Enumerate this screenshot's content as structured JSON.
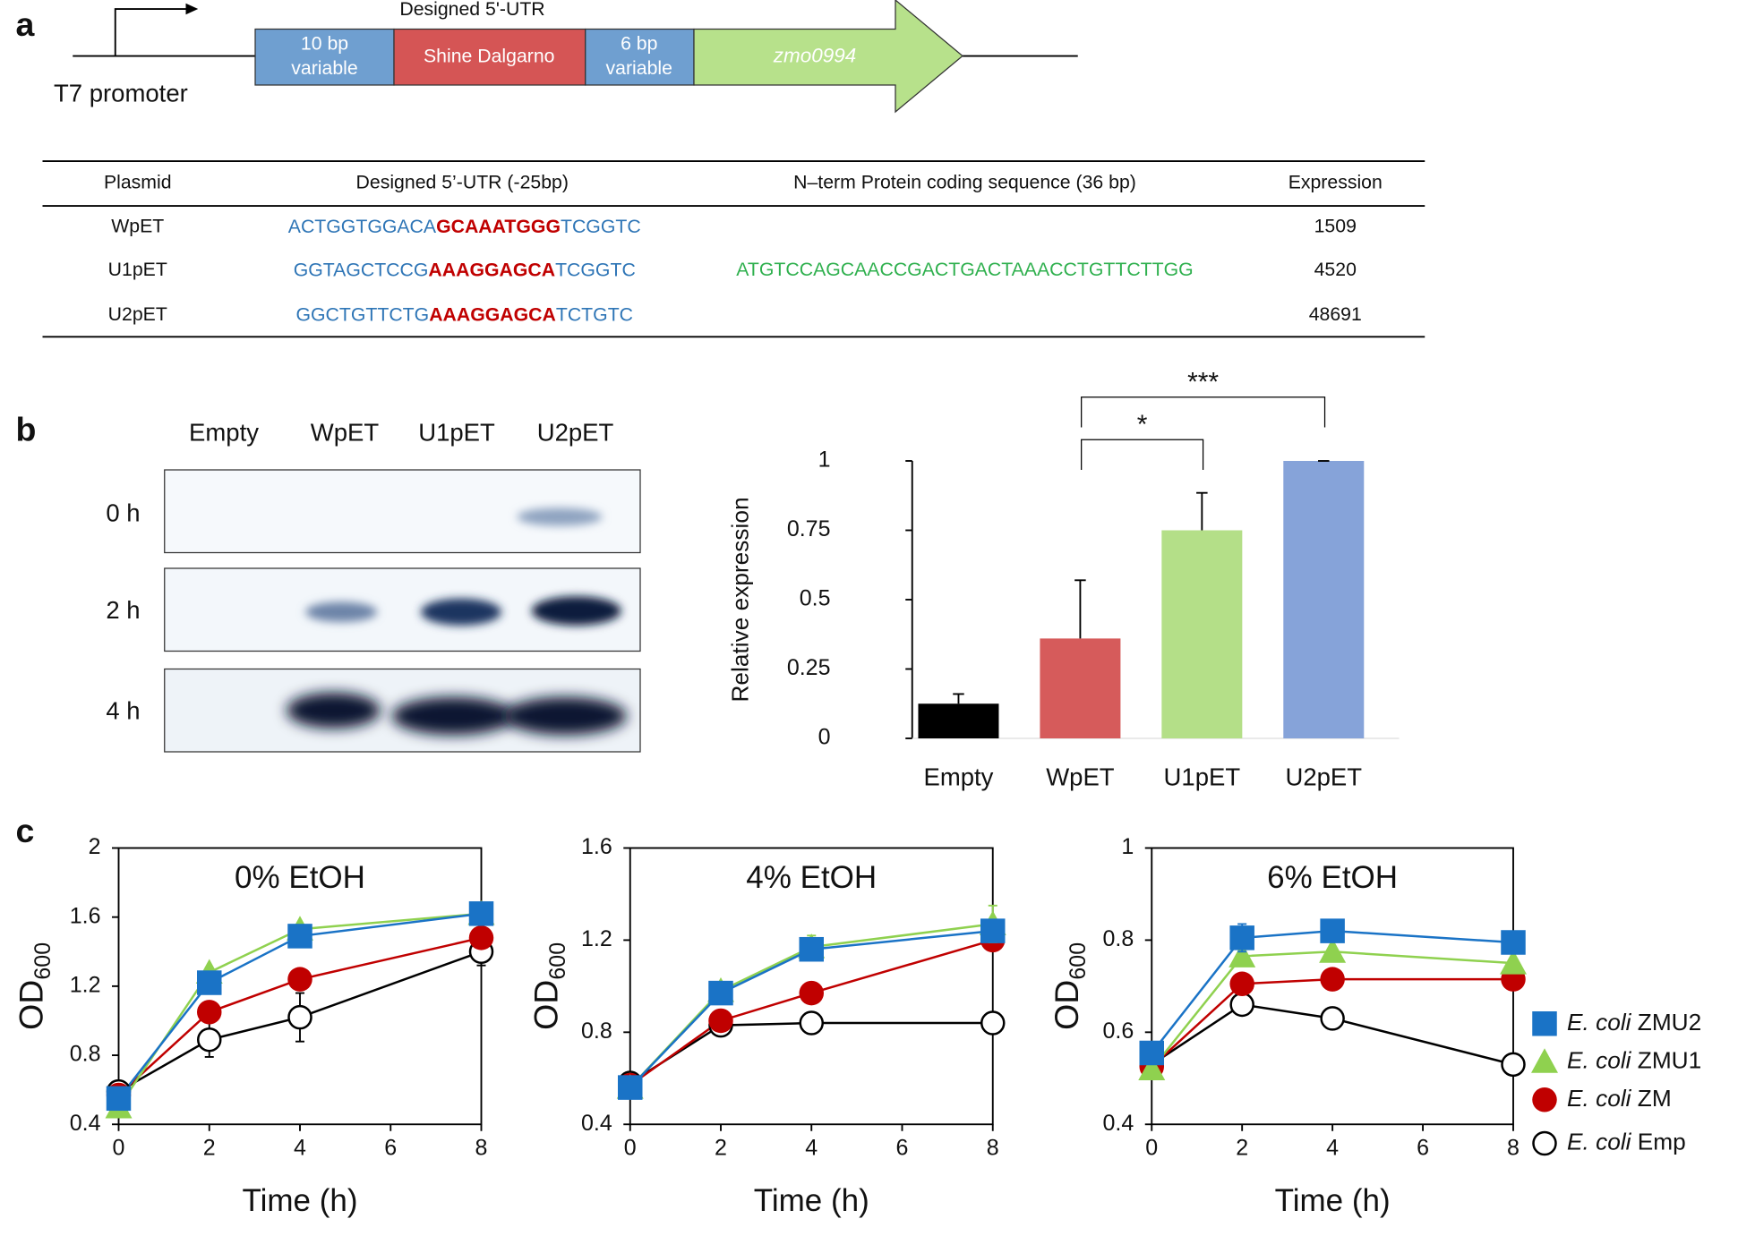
{
  "panel_labels": [
    "a",
    "b",
    "c"
  ],
  "diagram": {
    "promoter": "T7 promoter",
    "utr_label": "Designed 5'-UTR",
    "boxes": [
      [
        "10 bp",
        "variable"
      ],
      [
        "Shine Dalgarno"
      ],
      [
        "6 bp",
        "variable"
      ]
    ],
    "gene": "zmo0994"
  },
  "table": {
    "headers": [
      "Plasmid",
      "Designed 5’-UTR (-25bp)",
      "N–term Protein coding sequence (36 bp)",
      "Expression"
    ],
    "rows": [
      {
        "plasmid": "WpET",
        "utr": [
          "ACTGGTGGACA",
          "GCAAATGGG",
          "TCGGTC"
        ],
        "expression": 1509
      },
      {
        "plasmid": "U1pET",
        "utr": [
          "GGTAGCTCCG",
          "AAAGGAGCA",
          "TCGGTC"
        ],
        "coding": "ATGTCCAGCAACCGACTGACTAAACCTGTTCTTGG",
        "expression": 4520
      },
      {
        "plasmid": "U2pET",
        "utr": [
          "GGCTGTTCTG",
          "AAAGGAGCA",
          "TCTGTC"
        ],
        "expression": 48691
      }
    ]
  },
  "blot": {
    "lanes": [
      "Empty",
      "WpET",
      "U1pET",
      "U2pET"
    ],
    "rows": [
      "0 h",
      "2 h",
      "4 h"
    ]
  },
  "chart_data": [
    {
      "type": "bar",
      "y_label": "Relative expression",
      "categories": [
        "Empty",
        "WpET",
        "U1pET",
        "U2pET"
      ],
      "values": [
        0.125,
        0.36,
        0.75,
        1
      ],
      "errors": [
        0.035,
        0.21,
        0.135,
        0
      ],
      "colors": [
        "#000000",
        "#d65b5b",
        "#b4df88",
        "#86a3d9"
      ],
      "ylim": [
        0,
        1
      ],
      "yticks": [
        0,
        0.25,
        0.5,
        0.75,
        1
      ],
      "annotations": [
        {
          "text": "*",
          "from": "WpET",
          "to": "U1pET"
        },
        {
          "text": "***",
          "from": "WpET",
          "to": "U2pET"
        }
      ]
    },
    {
      "type": "line",
      "title": "0% EtOH",
      "x_label": "Time (h)",
      "y_label": {
        "text": "OD",
        "subscript": "600"
      },
      "xlim": [
        0,
        8
      ],
      "xticks": [
        0,
        2,
        4,
        6,
        8
      ],
      "ylim": [
        0.4,
        2
      ],
      "yticks": [
        0.4,
        0.8,
        1.2,
        1.6,
        2
      ],
      "x": [
        0,
        2,
        4,
        8
      ],
      "series": [
        {
          "name": "E. coli ZMU2",
          "color": "#1a73c6",
          "marker": "square",
          "values": [
            0.55,
            1.22,
            1.49,
            1.62
          ]
        },
        {
          "name": "E. coli ZMU1",
          "color": "#8fd14f",
          "marker": "triangle",
          "values": [
            0.5,
            1.28,
            1.53,
            1.62
          ]
        },
        {
          "name": "E. coli ZM",
          "color": "#c00000",
          "marker": "circle",
          "values": [
            0.57,
            1.05,
            1.24,
            1.48
          ]
        },
        {
          "name": "E. coli Emp",
          "color": "#000000",
          "marker": "open-circle",
          "values": [
            0.59,
            0.89,
            1.02,
            1.4
          ],
          "errors": [
            0,
            0.1,
            0.14,
            0.08
          ]
        }
      ]
    },
    {
      "type": "line",
      "title": "4% EtOH",
      "x_label": "Time (h)",
      "y_label": {
        "text": "OD",
        "subscript": "600"
      },
      "xlim": [
        0,
        8
      ],
      "xticks": [
        0,
        2,
        4,
        6,
        8
      ],
      "ylim": [
        0.4,
        1.6
      ],
      "yticks": [
        0.4,
        0.8,
        1.2,
        1.6
      ],
      "x": [
        0,
        2,
        4,
        8
      ],
      "series": [
        {
          "name": "E. coli ZMU2",
          "color": "#1a73c6",
          "marker": "square",
          "values": [
            0.56,
            0.97,
            1.16,
            1.24
          ]
        },
        {
          "name": "E. coli ZMU1",
          "color": "#8fd14f",
          "marker": "triangle",
          "values": [
            0.56,
            0.98,
            1.17,
            1.27
          ],
          "errors": [
            0,
            0,
            0.05,
            0.08
          ]
        },
        {
          "name": "E. coli ZM",
          "color": "#c00000",
          "marker": "circle",
          "values": [
            0.57,
            0.85,
            0.97,
            1.2
          ]
        },
        {
          "name": "E. coli Emp",
          "color": "#000000",
          "marker": "open-circle",
          "values": [
            0.58,
            0.83,
            0.84,
            0.84
          ],
          "errors": [
            0,
            0,
            0.02,
            0.02
          ]
        }
      ]
    },
    {
      "type": "line",
      "title": "6% EtOH",
      "x_label": "Time (h)",
      "y_label": {
        "text": "OD",
        "subscript": "600"
      },
      "xlim": [
        0,
        8
      ],
      "xticks": [
        0,
        2,
        4,
        6,
        8
      ],
      "ylim": [
        0.4,
        1
      ],
      "yticks": [
        0.4,
        0.6,
        0.8,
        1
      ],
      "x": [
        0,
        2,
        4,
        8
      ],
      "legend": "right",
      "series": [
        {
          "name": "E. coli ZMU2",
          "color": "#1a73c6",
          "marker": "square",
          "values": [
            0.555,
            0.805,
            0.82,
            0.795
          ],
          "errors": [
            0,
            0.03,
            0.015,
            0
          ]
        },
        {
          "name": "E. coli ZMU1",
          "color": "#8fd14f",
          "marker": "triangle",
          "values": [
            0.52,
            0.765,
            0.775,
            0.75
          ]
        },
        {
          "name": "E. coli ZM",
          "color": "#c00000",
          "marker": "circle",
          "values": [
            0.525,
            0.705,
            0.715,
            0.715
          ]
        },
        {
          "name": "E. coli Emp",
          "color": "#000000",
          "marker": "open-circle",
          "values": [
            0.53,
            0.66,
            0.63,
            0.53
          ],
          "errors": [
            0,
            0.015,
            0.015,
            0.02
          ]
        }
      ]
    }
  ]
}
